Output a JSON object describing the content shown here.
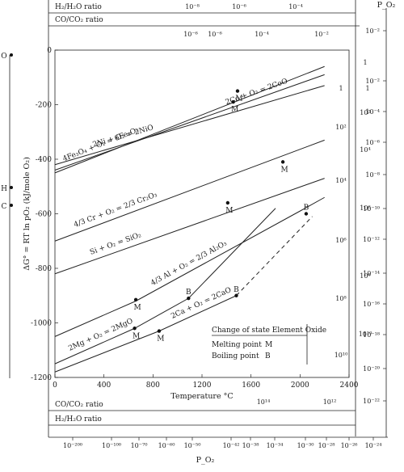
{
  "chart_data": {
    "type": "line",
    "xlabel": "Temperature °C",
    "ylabel": "ΔG° = RT ln pO₂ (kJ/mole O₂)",
    "xlim": [
      0,
      2400
    ],
    "ylim": [
      -1200,
      0
    ],
    "x_ticks": [
      "0",
      "400",
      "800",
      "1200",
      "1600",
      "2000",
      "2400"
    ],
    "y_ticks": [
      "0",
      "-200",
      "-400",
      "-600",
      "-800",
      "-1000",
      "-1200"
    ],
    "series": [
      {
        "name": "4Fe₃O₄ + O₂ = 6Fe₂O₃",
        "points": [
          [
            0,
            -450
          ],
          [
            2200,
            -60
          ]
        ],
        "style": "solid"
      },
      {
        "name": "2Co + O₂ = 2CoO",
        "points": [
          [
            0,
            -440
          ],
          [
            2200,
            -90
          ]
        ],
        "style": "solid"
      },
      {
        "name": "2Ni + O₂ = 2NiO",
        "points": [
          [
            0,
            -420
          ],
          [
            2200,
            -130
          ]
        ],
        "style": "solid"
      },
      {
        "name": "4/3 Cr + O₂ = 2/3 Cr₂O₃",
        "points": [
          [
            0,
            -700
          ],
          [
            2200,
            -330
          ]
        ],
        "style": "solid"
      },
      {
        "name": "Si + O₂ = SiO₂",
        "points": [
          [
            0,
            -820
          ],
          [
            2200,
            -470
          ]
        ],
        "style": "solid"
      },
      {
        "name": "4/3 Al + O₂ = 2/3 Al₂O₃",
        "points": [
          [
            0,
            -1050
          ],
          [
            660,
            -920
          ],
          [
            2000,
            -590
          ],
          [
            2200,
            -540
          ]
        ],
        "style": "solid"
      },
      {
        "name": "2Mg + O₂ = 2MgO",
        "points": [
          [
            0,
            -1150
          ],
          [
            650,
            -1020
          ],
          [
            1090,
            -910
          ],
          [
            1800,
            -580
          ]
        ],
        "style": "solid"
      },
      {
        "name": "2Ca + O₂ = 2CaO",
        "points": [
          [
            0,
            -1180
          ],
          [
            850,
            -1030
          ],
          [
            1480,
            -900
          ],
          [
            2100,
            -610
          ]
        ],
        "style": "solid+dashed"
      }
    ],
    "markers": [
      {
        "x": 1490,
        "y": -150,
        "label": "M"
      },
      {
        "x": 1455,
        "y": -190,
        "label": "M"
      },
      {
        "x": 1860,
        "y": -410,
        "label": "M"
      },
      {
        "x": 1410,
        "y": -560,
        "label": "M"
      },
      {
        "x": 2050,
        "y": -600,
        "label": "B"
      },
      {
        "x": 660,
        "y": -915,
        "label": "M"
      },
      {
        "x": 1090,
        "y": -910,
        "label": "B"
      },
      {
        "x": 650,
        "y": -1020,
        "label": "M"
      },
      {
        "x": 850,
        "y": -1030,
        "label": "M"
      },
      {
        "x": 1480,
        "y": -900,
        "label": "B"
      }
    ],
    "legend": {
      "title": "Change of state Element Oxide",
      "melting": "Melting point",
      "melting_symbol": "M",
      "boiling": "Boiling point",
      "boiling_symbol": "B"
    },
    "top_axis": {
      "h2_label": "H₂/H₂O ratio",
      "h2_ticks": [
        "10⁻⁸",
        "10⁻⁶",
        "10⁻⁴"
      ],
      "co_label": "CO/CO₂ ratio",
      "co_ticks": [
        "10⁻⁶",
        "10⁻⁶",
        "10⁻⁴",
        "10⁻²"
      ]
    },
    "bottom_axis": {
      "co_label": "CO/CO₂ ratio",
      "co_ticks": [
        "10¹⁴",
        "10¹²"
      ],
      "h2_label": "H₂/H₂O ratio",
      "po2_label": "P_O₂",
      "po2_ticks": [
        "10⁻²⁰⁰",
        "10⁻¹⁰⁰",
        "10⁻⁷⁰",
        "10⁻⁶⁰",
        "10⁻⁵⁰",
        "10⁻⁴²",
        "10⁻³⁸",
        "10⁻³⁴",
        "10⁻³⁰",
        "10⁻²⁸",
        "10⁻²⁶",
        "10⁻²⁴"
      ]
    },
    "right_axes": {
      "po2_label": "P_O₂",
      "po2_ticks": [
        "10⁻²",
        "1",
        "10⁻²",
        "10⁻⁴",
        "10⁻⁶",
        "10⁻⁸",
        "10⁻¹⁰",
        "10⁻¹²",
        "10⁻¹⁴",
        "10⁻¹⁶",
        "10⁻¹⁸",
        "10⁻²⁰",
        "10⁻²²"
      ],
      "inner_ticks": [
        "1",
        "10²",
        "10⁴",
        "10⁶",
        "10⁸",
        "10¹⁰"
      ],
      "middle_ticks": [
        "1",
        "10²",
        "10⁴",
        "10⁶",
        "10⁸",
        "10¹⁰",
        "10¹²",
        "10¹⁴"
      ]
    },
    "left_markers": [
      "O",
      "H",
      "C"
    ]
  }
}
